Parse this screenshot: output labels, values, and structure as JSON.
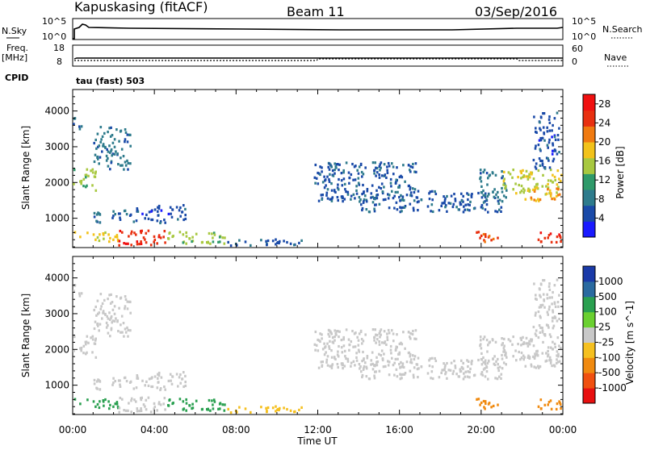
{
  "header": {
    "station": "Kapuskasing (fitACF)",
    "beam": "Beam 11",
    "date": "03/Sep/2016"
  },
  "left_labels": {
    "nsky": "N.Sky",
    "freq": "Freq.",
    "freq_unit": "[MHz]",
    "cpid": "CPID"
  },
  "right_labels": {
    "nsearch": "N.Search",
    "nave": "Nave"
  },
  "cpid_text": "tau (fast) 503",
  "strip_ticks": {
    "nsky_left": [
      "10^5",
      "10^0"
    ],
    "nsky_right": [
      "10^5",
      "10^0"
    ],
    "freq_left": [
      "18",
      "8"
    ],
    "nave_right": [
      "60",
      "0"
    ]
  },
  "colors": {
    "power_scale": [
      "#1a1aff",
      "#1a4aa8",
      "#2e7b8c",
      "#2f9a6a",
      "#a8c840",
      "#f2c21a",
      "#f07a10",
      "#e83010",
      "#f01010"
    ],
    "velocity_scale": [
      "#e81010",
      "#f05010",
      "#f08a10",
      "#f5c020",
      "#c8c8c8",
      "#6ad030",
      "#2aa050",
      "#2a6aa0",
      "#1a3aa8"
    ]
  },
  "chart_data": [
    {
      "type": "heatmap",
      "title": "",
      "xlabel": "",
      "ylabel": "Slant Range [km]",
      "xlim": [
        "00:00",
        "00:00"
      ],
      "ylim": [
        180,
        4600
      ],
      "x_ticks": [
        "00:00",
        "04:00",
        "08:00",
        "12:00",
        "16:00",
        "20:00",
        "00:00"
      ],
      "y_ticks": [
        1000,
        2000,
        3000,
        4000
      ],
      "colorbar": {
        "label": "Power [dB]",
        "ticks": [
          4,
          8,
          12,
          16,
          20,
          24,
          28
        ],
        "range": [
          0,
          30
        ]
      },
      "regions": [
        {
          "t0": 0.0,
          "t1": 1.1,
          "r0": 1800,
          "r1": 2400,
          "value": 14
        },
        {
          "t0": 1.0,
          "t1": 2.8,
          "r0": 2400,
          "r1": 3600,
          "value": 8
        },
        {
          "t0": 0.0,
          "t1": 0.4,
          "r0": 3500,
          "r1": 3900,
          "value": 6
        },
        {
          "t0": 1.0,
          "t1": 3.0,
          "r0": 900,
          "r1": 1250,
          "value": 7
        },
        {
          "t0": 0.0,
          "t1": 2.2,
          "r0": 380,
          "r1": 650,
          "value": 18
        },
        {
          "t0": 2.2,
          "t1": 4.5,
          "r0": 250,
          "r1": 700,
          "value": 26
        },
        {
          "t0": 3.0,
          "t1": 5.5,
          "r0": 900,
          "r1": 1400,
          "value": 5
        },
        {
          "t0": 4.5,
          "t1": 7.5,
          "r0": 300,
          "r1": 650,
          "value": 14
        },
        {
          "t0": 7.5,
          "t1": 11.5,
          "r0": 260,
          "r1": 450,
          "value": 6
        },
        {
          "t0": 11.8,
          "t1": 17.0,
          "r0": 1500,
          "r1": 2600,
          "value": 6
        },
        {
          "t0": 14.0,
          "t1": 21.0,
          "r0": 1200,
          "r1": 1800,
          "value": 6
        },
        {
          "t0": 19.8,
          "t1": 21.2,
          "r0": 1600,
          "r1": 2400,
          "value": 8
        },
        {
          "t0": 21.0,
          "t1": 23.9,
          "r0": 1700,
          "r1": 2400,
          "value": 16
        },
        {
          "t0": 22.0,
          "t1": 23.9,
          "r0": 1500,
          "r1": 1900,
          "value": 20
        },
        {
          "t0": 22.5,
          "t1": 23.8,
          "r0": 2400,
          "r1": 4000,
          "value": 5
        },
        {
          "t0": 19.5,
          "t1": 20.8,
          "r0": 350,
          "r1": 650,
          "value": 24
        },
        {
          "t0": 22.7,
          "t1": 23.9,
          "r0": 350,
          "r1": 700,
          "value": 26
        }
      ]
    },
    {
      "type": "heatmap",
      "title": "",
      "xlabel": "Time UT",
      "ylabel": "Slant Range [km]",
      "xlim": [
        "00:00",
        "00:00"
      ],
      "ylim": [
        180,
        4600
      ],
      "x_ticks": [
        "00:00",
        "04:00",
        "08:00",
        "12:00",
        "16:00",
        "20:00",
        "00:00"
      ],
      "y_ticks": [
        1000,
        2000,
        3000,
        4000
      ],
      "colorbar": {
        "label": "Velocity [m s^-1]",
        "ticks": [
          -1000,
          -500,
          -100,
          -25,
          25,
          100,
          500,
          1000
        ]
      },
      "regions": [
        {
          "t0": 0.0,
          "t1": 1.1,
          "r0": 1800,
          "r1": 2400,
          "value": 0
        },
        {
          "t0": 1.0,
          "t1": 2.8,
          "r0": 2400,
          "r1": 3600,
          "value": 0
        },
        {
          "t0": 0.0,
          "t1": 0.4,
          "r0": 3500,
          "r1": 3900,
          "value": 0
        },
        {
          "t0": 1.0,
          "t1": 3.0,
          "r0": 900,
          "r1": 1250,
          "value": 0
        },
        {
          "t0": 0.0,
          "t1": 2.2,
          "r0": 380,
          "r1": 650,
          "value": 150
        },
        {
          "t0": 2.2,
          "t1": 4.5,
          "r0": 250,
          "r1": 700,
          "value": 0
        },
        {
          "t0": 3.0,
          "t1": 5.5,
          "r0": 900,
          "r1": 1400,
          "value": 0
        },
        {
          "t0": 4.5,
          "t1": 7.5,
          "r0": 300,
          "r1": 650,
          "value": 150
        },
        {
          "t0": 7.5,
          "t1": 11.5,
          "r0": 260,
          "r1": 450,
          "value": -80
        },
        {
          "t0": 11.8,
          "t1": 17.0,
          "r0": 1500,
          "r1": 2600,
          "value": 0
        },
        {
          "t0": 14.0,
          "t1": 21.0,
          "r0": 1200,
          "r1": 1800,
          "value": 0
        },
        {
          "t0": 19.8,
          "t1": 21.2,
          "r0": 1600,
          "r1": 2400,
          "value": 0
        },
        {
          "t0": 21.0,
          "t1": 23.9,
          "r0": 1700,
          "r1": 2400,
          "value": 0
        },
        {
          "t0": 22.0,
          "t1": 23.9,
          "r0": 1500,
          "r1": 1900,
          "value": 0
        },
        {
          "t0": 22.5,
          "t1": 23.8,
          "r0": 2400,
          "r1": 4000,
          "value": 0
        },
        {
          "t0": 19.5,
          "t1": 20.8,
          "r0": 350,
          "r1": 650,
          "value": -150
        },
        {
          "t0": 22.7,
          "t1": 23.9,
          "r0": 350,
          "r1": 700,
          "value": -120
        }
      ]
    }
  ]
}
